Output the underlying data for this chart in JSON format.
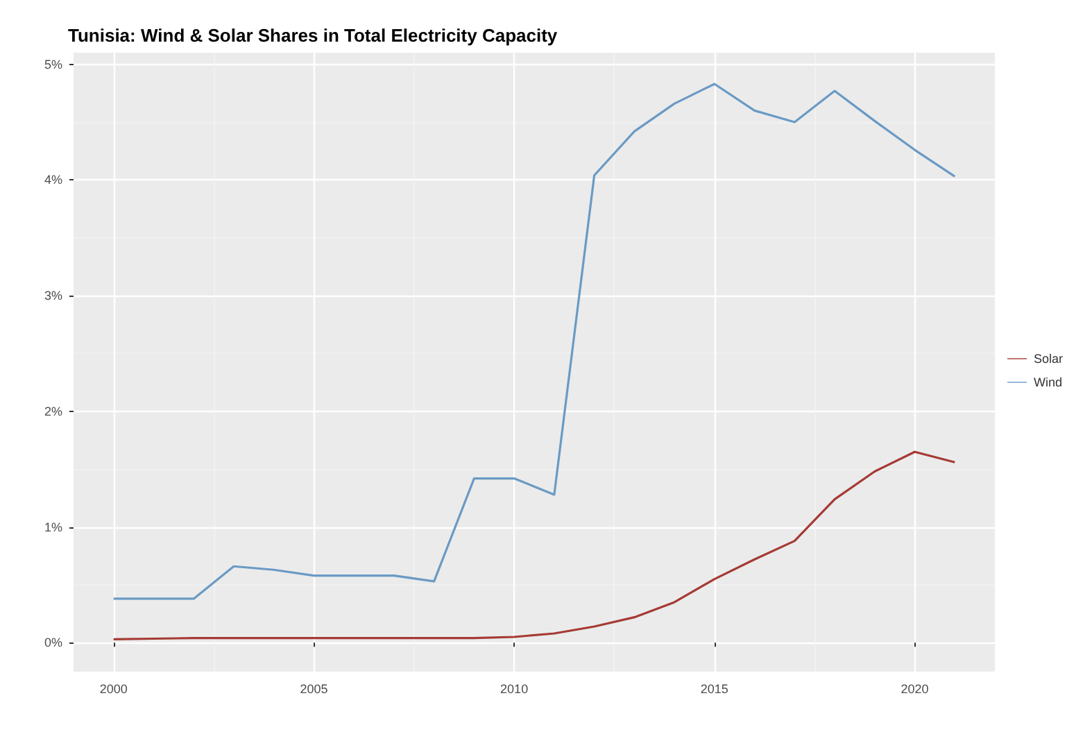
{
  "chart_data": {
    "type": "line",
    "title": "Tunisia: Wind & Solar Shares in Total Electricity Capacity",
    "x": [
      2000,
      2001,
      2002,
      2003,
      2004,
      2005,
      2006,
      2007,
      2008,
      2009,
      2010,
      2011,
      2012,
      2013,
      2014,
      2015,
      2016,
      2017,
      2018,
      2019,
      2020,
      2021
    ],
    "series": [
      {
        "name": "Solar",
        "color": "#a63a34",
        "values": [
          0.03,
          0.035,
          0.04,
          0.04,
          0.04,
          0.04,
          0.04,
          0.04,
          0.04,
          0.04,
          0.05,
          0.08,
          0.14,
          0.22,
          0.35,
          0.55,
          0.72,
          0.88,
          1.24,
          1.48,
          1.65,
          1.56
        ]
      },
      {
        "name": "Wind",
        "color": "#6a9ac4",
        "values": [
          0.38,
          0.38,
          0.38,
          0.66,
          0.63,
          0.58,
          0.58,
          0.58,
          0.53,
          1.42,
          1.42,
          1.28,
          4.04,
          4.42,
          4.66,
          4.83,
          4.6,
          4.5,
          4.77,
          4.51,
          4.26,
          4.03
        ]
      }
    ],
    "xlim": [
      1999,
      2022
    ],
    "xticks": [
      2000,
      2005,
      2010,
      2015,
      2020
    ],
    "ylim": [
      -0.25,
      5.1
    ],
    "yticks": [
      {
        "value": 0,
        "label": "0%"
      },
      {
        "value": 1,
        "label": "1%"
      },
      {
        "value": 2,
        "label": "2%"
      },
      {
        "value": 3,
        "label": "3%"
      },
      {
        "value": 4,
        "label": "4%"
      },
      {
        "value": 5,
        "label": "5%"
      }
    ],
    "grid": true,
    "legend": "right",
    "marker": "none",
    "line_style": "solid"
  }
}
